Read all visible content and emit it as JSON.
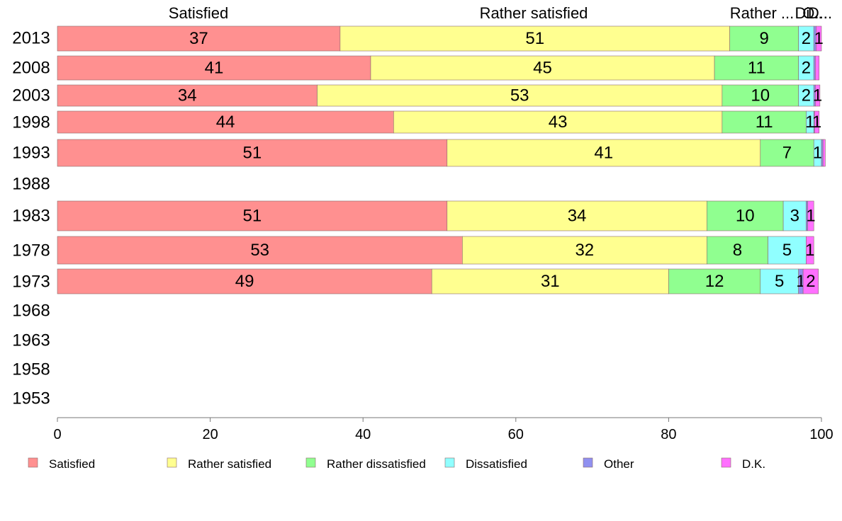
{
  "chart_data": {
    "type": "bar",
    "orientation": "horizontal",
    "stacked": true,
    "categories": [
      "2013",
      "2008",
      "2003",
      "1998",
      "1993",
      "1988",
      "1983",
      "1978",
      "1973",
      "1968",
      "1963",
      "1958",
      "1953"
    ],
    "series": [
      {
        "name": "Satisfied",
        "color": "#ff9090",
        "values": [
          37,
          41,
          34,
          44,
          51,
          null,
          51,
          53,
          49,
          null,
          null,
          null,
          null
        ]
      },
      {
        "name": "Rather satisfied",
        "color": "#ffff90",
        "values": [
          51,
          45,
          53,
          43,
          41,
          null,
          34,
          32,
          31,
          null,
          null,
          null,
          null
        ]
      },
      {
        "name": "Rather dissatisfied",
        "color": "#90ff90",
        "values": [
          9,
          11,
          10,
          11,
          7,
          null,
          10,
          8,
          12,
          null,
          null,
          null,
          null
        ]
      },
      {
        "name": "Dissatisfied",
        "color": "#90ffff",
        "values": [
          2,
          2,
          2,
          1,
          1,
          null,
          3,
          5,
          5,
          null,
          null,
          null,
          null
        ]
      },
      {
        "name": "Other",
        "color": "#9090f0",
        "values": [
          0.3,
          0.2,
          0.2,
          0.1,
          0.2,
          null,
          0.2,
          0,
          0.6,
          null,
          null,
          null,
          null
        ]
      },
      {
        "name": "D.K.",
        "color": "#ff70ff",
        "values": [
          0.7,
          0.5,
          0.6,
          0.6,
          0.3,
          null,
          0.8,
          1,
          2,
          null,
          null,
          null,
          null
        ]
      }
    ],
    "segment_labels": [
      [
        "37",
        "51",
        "9",
        "2",
        "",
        "1"
      ],
      [
        "41",
        "45",
        "11",
        "2",
        "",
        ""
      ],
      [
        "34",
        "53",
        "10",
        "2",
        "",
        "1"
      ],
      [
        "44",
        "43",
        "11",
        "1",
        "",
        "1"
      ],
      [
        "51",
        "41",
        "7",
        "1",
        "",
        ""
      ],
      [],
      [
        "51",
        "34",
        "10",
        "3",
        "",
        "1"
      ],
      [
        "53",
        "32",
        "8",
        "5",
        "",
        "1"
      ],
      [
        "49",
        "31",
        "12",
        "5",
        "1",
        "2"
      ],
      [],
      [],
      [],
      []
    ],
    "top_labels": [
      "Satisfied",
      "Rather satisfied",
      "Rather ...",
      "Di...",
      "O...",
      "D..."
    ],
    "xlim": [
      0,
      100
    ],
    "xticks": [
      "0",
      "20",
      "40",
      "60",
      "80",
      "100"
    ],
    "legend": [
      "Satisfied",
      "Rather satisfied",
      "Rather dissatisfied",
      "Dissatisfied",
      "Other",
      "D.K."
    ],
    "legend_position": "bottom",
    "grid": false
  }
}
